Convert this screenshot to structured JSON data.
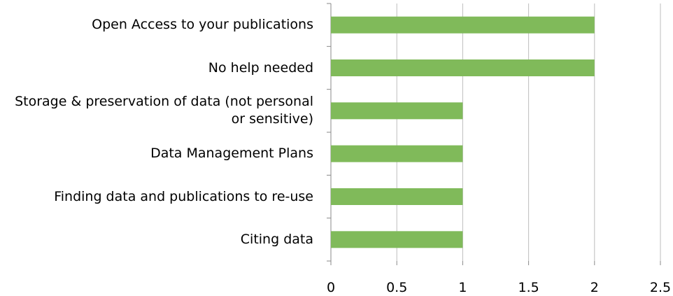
{
  "chart_data": {
    "type": "barh",
    "categories": [
      "Open Access to your publications",
      "No help needed",
      "Storage & preservation of data (not personal or sensitive)",
      "Data Management Plans",
      "Finding data and publications to re-use",
      "Citing data"
    ],
    "values": [
      2,
      2,
      1,
      1,
      1,
      1
    ],
    "color": "#80ba5a",
    "xlim": [
      0,
      2.5
    ],
    "xticks": [
      0,
      0.5,
      1,
      1.5,
      2,
      2.5
    ],
    "grid": true
  }
}
